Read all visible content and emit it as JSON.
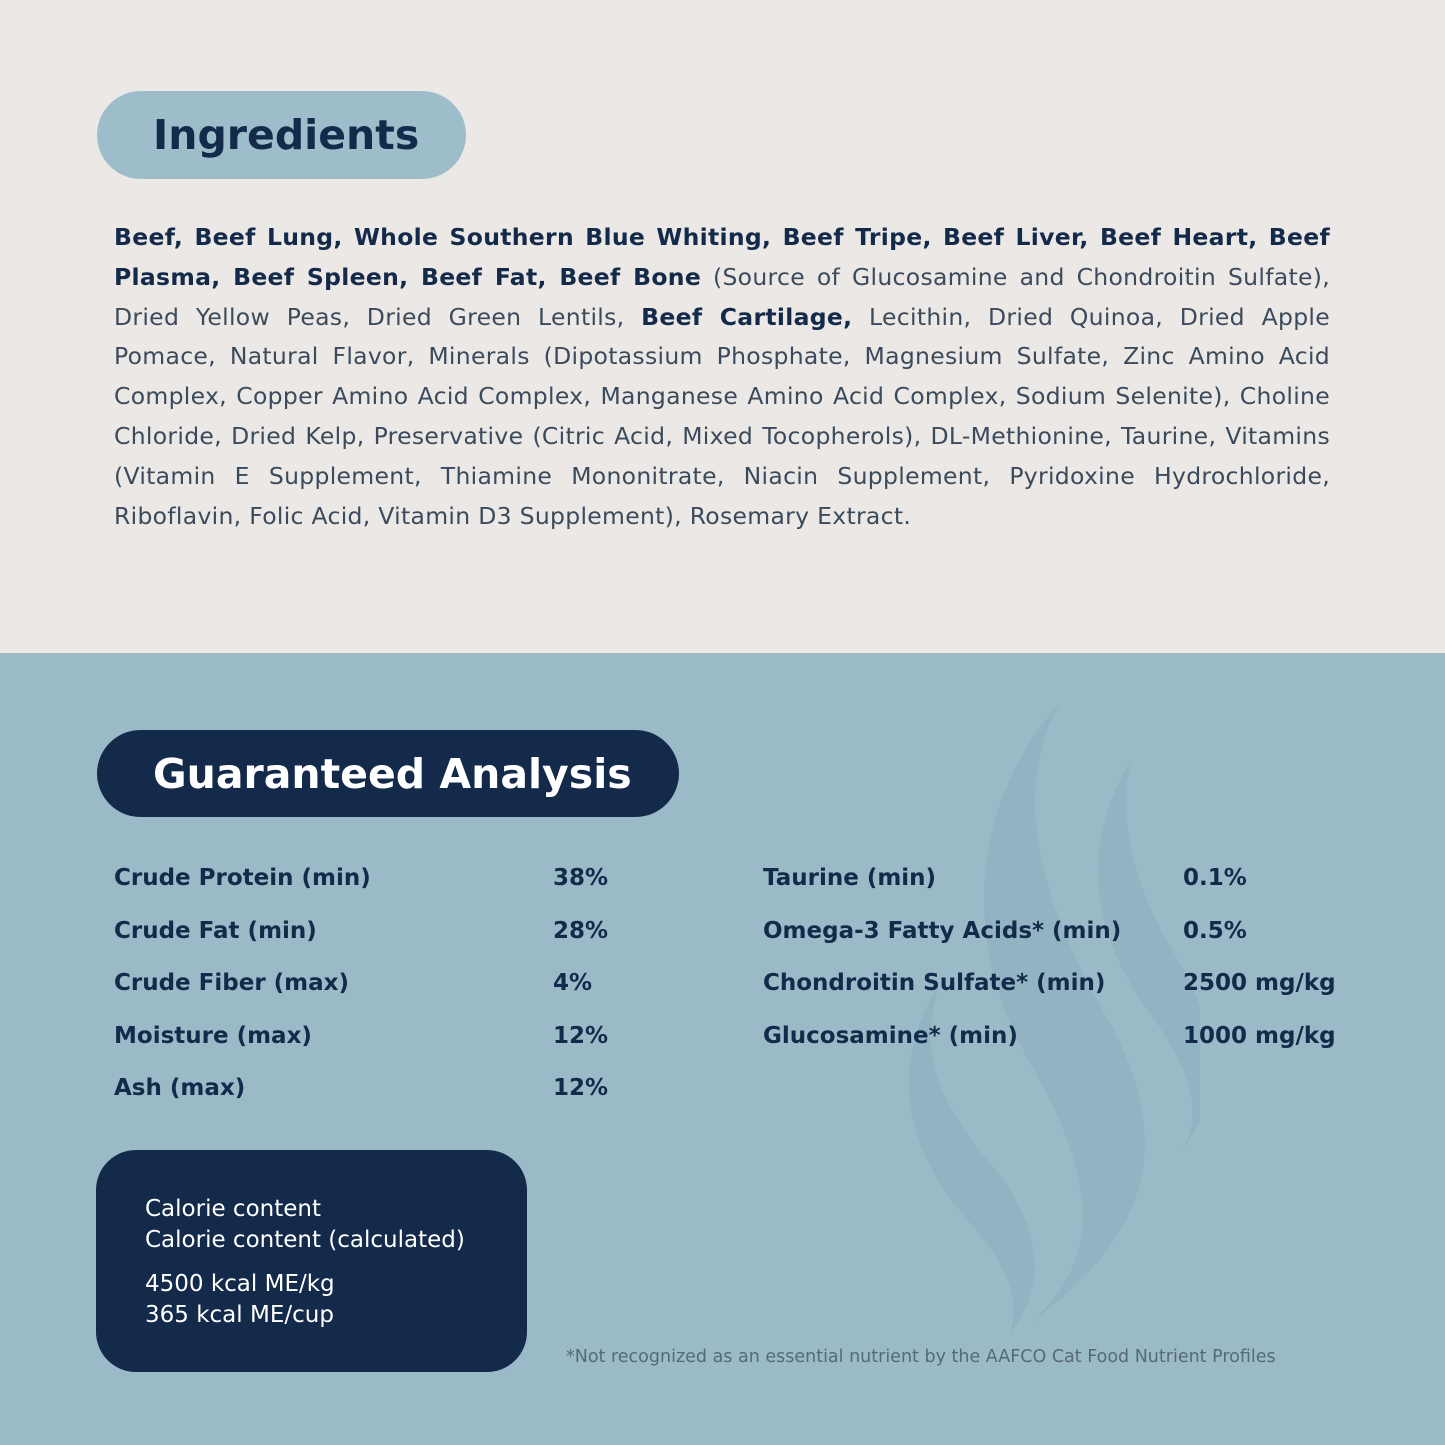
{
  "ingredients": {
    "title": "Ingredients",
    "segments": [
      {
        "text": "Beef, Beef Lung, Whole Southern Blue Whiting, Beef Tripe, Beef Liver, Beef Heart, Beef Plasma, Beef Spleen, Beef Fat, Beef Bone",
        "bold": true
      },
      {
        "text": " (Source of Glucosamine and Chondroitin Sulfate), Dried Yellow Peas, Dried Green Lentils, ",
        "bold": false
      },
      {
        "text": "Beef Cartilage,",
        "bold": true
      },
      {
        "text": " Lecithin, Dried Quinoa, Dried Apple Pomace, Natural Flavor, Minerals (Dipotassium Phosphate, Magnesium Sulfate, Zinc Amino Acid Complex, Copper Amino Acid Complex, Manganese Amino Acid Complex, Sodium Selenite), Choline Chloride, Dried Kelp, Preservative (Citric Acid, Mixed Tocopherols), DL-Methionine, Taurine, Vitamins (Vitamin E Supplement, Thiamine Mononitrate, Niacin Supplement, Pyridoxine Hydrochloride, Riboflavin, Folic Acid, Vitamin D3 Supplement), Rosemary Extract.",
        "bold": false
      }
    ]
  },
  "analysis": {
    "title": "Guaranteed Analysis",
    "left": [
      {
        "label": "Crude Protein (min)",
        "value": "38%"
      },
      {
        "label": "Crude Fat (min)",
        "value": "28%"
      },
      {
        "label": "Crude Fiber (max)",
        "value": "4%"
      },
      {
        "label": "Moisture (max)",
        "value": "12%"
      },
      {
        "label": "Ash (max)",
        "value": "12%"
      }
    ],
    "right": [
      {
        "label": "Taurine (min)",
        "value": "0.1%"
      },
      {
        "label": "Omega-3 Fatty Acids* (min)",
        "value": "0.5%"
      },
      {
        "label": "Chondroitin Sulfate* (min)",
        "value": "2500 mg/kg"
      },
      {
        "label": "Glucosamine* (min)",
        "value": "1000 mg/kg"
      }
    ],
    "calorie": {
      "label1": "Calorie content",
      "label2": "Calorie content (calculated)",
      "value1": "4500 kcal ME/kg",
      "value2": "365 kcal ME/cup"
    },
    "footnote": "*Not recognized as an essential nutrient by the AAFCO Cat Food Nutrient Profiles"
  },
  "colors": {
    "navy": "#132a4b",
    "light_blue": "#9bbac7",
    "cream": "#ebe8e5"
  },
  "decor_icon": "flame-watermark-icon"
}
